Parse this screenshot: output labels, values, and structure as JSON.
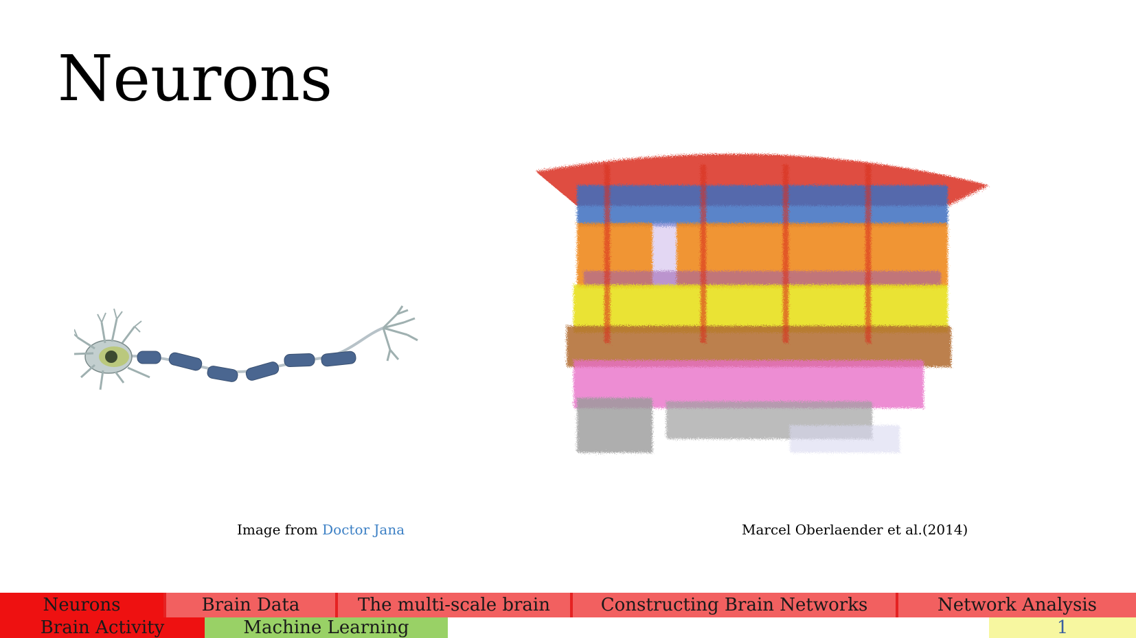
{
  "slide": {
    "title": "Neurons"
  },
  "figures": {
    "left_caption_prefix": "Image from ",
    "left_caption_link": "Doctor Jana",
    "right_caption": "Marcel Oberlaender et al.(2014)"
  },
  "nav": {
    "row1": [
      {
        "label": "Neurons",
        "state": "active"
      },
      {
        "label": "Brain Data",
        "state": "section"
      },
      {
        "label": "The multi-scale brain",
        "state": "section"
      },
      {
        "label": "Constructing Brain Networks",
        "state": "section"
      },
      {
        "label": "Network Analysis",
        "state": "section"
      }
    ],
    "row2": [
      {
        "label": "Brain Activity",
        "state": "active"
      },
      {
        "label": "Machine Learning",
        "state": "ml"
      }
    ],
    "page_number": "1"
  },
  "colors": {
    "active": "#ee1111",
    "section": "#f26060",
    "ml": "#99d166",
    "page": "#f7f7a0",
    "link": "#3b7fc4"
  },
  "icons": {
    "left_figure": "neuron-illustration",
    "right_figure": "cortical-column-reconstruction"
  }
}
